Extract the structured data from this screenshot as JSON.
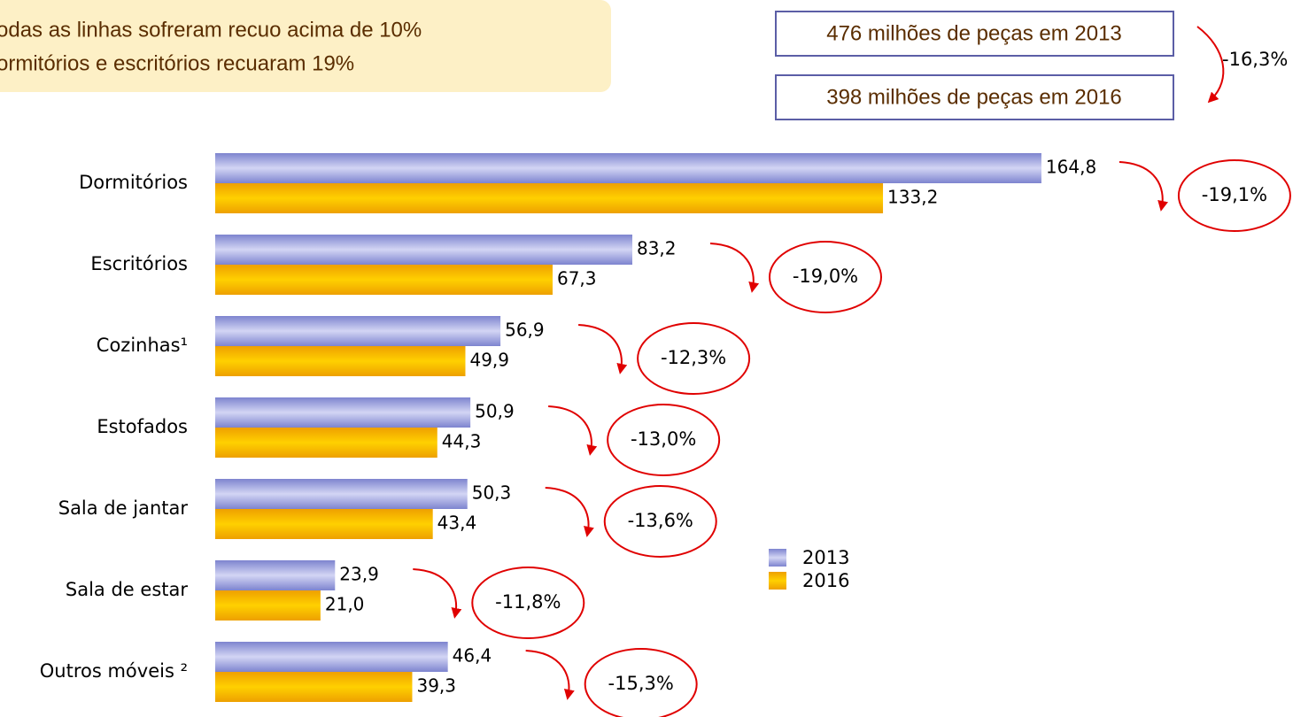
{
  "header": {
    "lines": [
      "odas as linhas sofreram recuo acima de 10%",
      "ormitórios e escritórios recuaram 19%"
    ]
  },
  "totals": {
    "lines": [
      "476 milhões de peças em 2013",
      "398 milhões de peças em 2016"
    ],
    "change": "-16,3%"
  },
  "chart_data": {
    "type": "bar",
    "orientation": "horizontal",
    "categories": [
      "Dormitórios",
      "Escritórios",
      "Cozinhas¹",
      "Estofados",
      "Sala de jantar",
      "Sala de estar",
      "Outros móveis ²"
    ],
    "series": [
      {
        "name": "2013",
        "color": "#8a90d8",
        "values": [
          164.8,
          83.2,
          56.9,
          50.9,
          50.3,
          23.9,
          46.4
        ],
        "value_labels": [
          "164,8",
          "83,2",
          "56,9",
          "50,9",
          "50,3",
          "23,9",
          "46,4"
        ]
      },
      {
        "name": "2016",
        "color": "#f5b000",
        "values": [
          133.2,
          67.3,
          49.9,
          44.3,
          43.4,
          21.0,
          39.3
        ],
        "value_labels": [
          "133,2",
          "67,3",
          "49,9",
          "44,3",
          "43,4",
          "21,0",
          "39,3"
        ]
      }
    ],
    "annotations": [
      "-19,1%",
      "-19,0%",
      "-12,3%",
      "-13,0%",
      "-13,6%",
      "-11,8%",
      "-15,3%"
    ]
  }
}
